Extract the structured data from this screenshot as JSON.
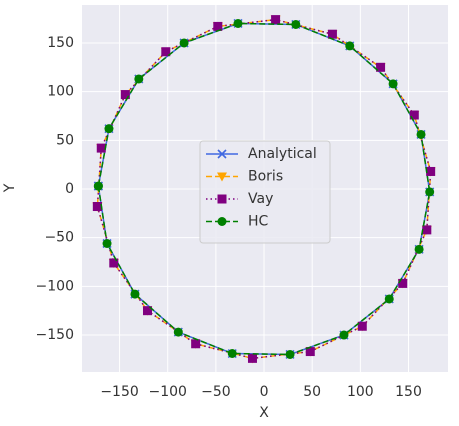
{
  "chart_data": {
    "type": "line",
    "xlabel": "X",
    "ylabel": "Y",
    "xlim": [
      -189,
      191
    ],
    "ylim": [
      -188,
      189
    ],
    "xticks": [
      {
        "value": -150,
        "label": "−150"
      },
      {
        "value": -100,
        "label": "−100"
      },
      {
        "value": -50,
        "label": "−50"
      },
      0,
      50,
      100,
      150
    ],
    "yticks": [
      {
        "value": -150,
        "label": "−150"
      },
      {
        "value": -100,
        "label": "−100"
      },
      {
        "value": -50,
        "label": "−50"
      },
      0,
      50,
      100,
      150
    ],
    "grid": true,
    "legend": "center",
    "series": [
      {
        "name": "Analytical",
        "color": "#4169e1",
        "linestyle": "solid",
        "marker": "x",
        "x": [
          -172,
          -163,
          -134,
          -89,
          -33,
          27,
          83,
          130,
          161,
          172,
          163,
          134,
          89,
          33,
          -27,
          -83,
          -130,
          -161,
          -172
        ],
        "values": [
          3,
          -56,
          -108,
          -147,
          -169,
          -170,
          -150,
          -113,
          -62,
          -3,
          56,
          108,
          147,
          169,
          170,
          150,
          113,
          62,
          3
        ]
      },
      {
        "name": "Boris",
        "color": "#ffa500",
        "linestyle": "dashed",
        "marker": "v",
        "x": [
          -173,
          -156,
          -121,
          -71,
          -12,
          48,
          102,
          144,
          169,
          173,
          156,
          121,
          71,
          12,
          -48,
          -102,
          -144,
          -169,
          -173
        ],
        "values": [
          -18,
          -76,
          -125,
          -159,
          -174,
          -167,
          -141,
          -97,
          -42,
          18,
          76,
          125,
          159,
          174,
          167,
          141,
          97,
          42,
          -18
        ]
      },
      {
        "name": "Vay",
        "color": "#800080",
        "linestyle": "dotted",
        "marker": "s",
        "x": [
          -173,
          -156,
          -121,
          -71,
          -12,
          48,
          102,
          144,
          169,
          173,
          156,
          121,
          71,
          12,
          -48,
          -102,
          -144,
          -169,
          -173
        ],
        "values": [
          -18,
          -76,
          -125,
          -159,
          -174,
          -167,
          -141,
          -97,
          -42,
          18,
          76,
          125,
          159,
          174,
          167,
          141,
          97,
          42,
          -18
        ]
      },
      {
        "name": "HC",
        "color": "#008000",
        "linestyle": "dashed",
        "marker": "o",
        "x": [
          -172,
          -163,
          -134,
          -89,
          -33,
          27,
          83,
          130,
          161,
          172,
          163,
          134,
          89,
          33,
          -27,
          -83,
          -130,
          -161,
          -172
        ],
        "values": [
          3,
          -56,
          -108,
          -147,
          -169,
          -170,
          -150,
          -113,
          -62,
          -3,
          56,
          108,
          147,
          169,
          170,
          150,
          113,
          62,
          3
        ]
      }
    ]
  }
}
